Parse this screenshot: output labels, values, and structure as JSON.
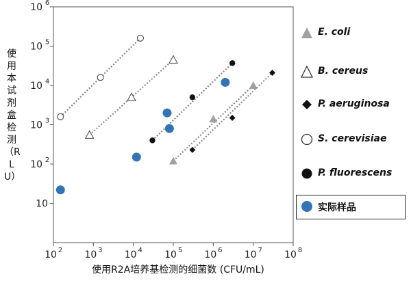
{
  "chart_data": {
    "type": "scatter",
    "xlabel": "使用R2A培养基检测的细菌数 (CFU/mL)",
    "ylabel": "使用本试剂盒检测（RLU）",
    "xscale": "log",
    "yscale": "log",
    "xlim": [
      100,
      100000000
    ],
    "ylim": [
      1,
      1000000
    ],
    "x_ticks": [
      {
        "value": 100,
        "base": "10",
        "exp": "2"
      },
      {
        "value": 1000,
        "base": "10",
        "exp": "3"
      },
      {
        "value": 10000,
        "base": "10",
        "exp": "4"
      },
      {
        "value": 100000,
        "base": "10",
        "exp": "5"
      },
      {
        "value": 1000000,
        "base": "10",
        "exp": "6"
      },
      {
        "value": 10000000,
        "base": "10",
        "exp": "7"
      },
      {
        "value": 100000000,
        "base": "10",
        "exp": "8"
      }
    ],
    "y_ticks": [
      {
        "value": 10,
        "base": "10",
        "exp": ""
      },
      {
        "value": 100,
        "base": "10",
        "exp": "2"
      },
      {
        "value": 1000,
        "base": "10",
        "exp": "3"
      },
      {
        "value": 10000,
        "base": "10",
        "exp": "4"
      },
      {
        "value": 100000,
        "base": "10",
        "exp": "5"
      },
      {
        "value": 1000000,
        "base": "10",
        "exp": "6"
      }
    ],
    "grid": false,
    "legend_position": "right",
    "series": [
      {
        "name": "E. coli",
        "marker": "triangle-filled",
        "color": "#a0a0a0",
        "points": [
          [
            100000,
            120
          ],
          [
            1000000,
            1400
          ],
          [
            10000000,
            10000
          ]
        ]
      },
      {
        "name": "B. cereus",
        "marker": "triangle-open",
        "color": "#555555",
        "points": [
          [
            800,
            550
          ],
          [
            9000,
            5000
          ],
          [
            100000,
            45000
          ]
        ]
      },
      {
        "name": "P. aeruginosa",
        "marker": "diamond-filled",
        "color": "#111111",
        "points": [
          [
            300000,
            230
          ],
          [
            3000000,
            1500
          ],
          [
            30000000,
            21000
          ]
        ]
      },
      {
        "name": "S. cerevisiae",
        "marker": "circle-open",
        "color": "#444444",
        "points": [
          [
            150,
            1600
          ],
          [
            1500,
            16000
          ],
          [
            15000,
            160000
          ]
        ]
      },
      {
        "name": "P. fluorescens",
        "marker": "circle-filled",
        "color": "#111111",
        "points": [
          [
            30000,
            400
          ],
          [
            300000,
            5000
          ],
          [
            3000000,
            37000
          ]
        ]
      },
      {
        "name": "实际样品",
        "marker": "circle-filled",
        "color": "#3274b4",
        "points": [
          [
            150,
            22
          ],
          [
            12000,
            150
          ],
          [
            70000,
            2000
          ],
          [
            80000,
            800
          ],
          [
            2000000,
            12000
          ]
        ]
      }
    ],
    "trendlines": [
      {
        "series": "E. coli",
        "from": [
          100000,
          120
        ],
        "to": [
          10000000,
          10000
        ]
      },
      {
        "series": "B. cereus",
        "from": [
          800,
          550
        ],
        "to": [
          100000,
          45000
        ]
      },
      {
        "series": "P. aeruginosa",
        "from": [
          300000,
          230
        ],
        "to": [
          30000000,
          21000
        ]
      },
      {
        "series": "S. cerevisiae",
        "from": [
          150,
          1600
        ],
        "to": [
          15000,
          160000
        ]
      },
      {
        "series": "P. fluorescens",
        "from": [
          30000,
          400
        ],
        "to": [
          3000000,
          37000
        ]
      }
    ]
  }
}
